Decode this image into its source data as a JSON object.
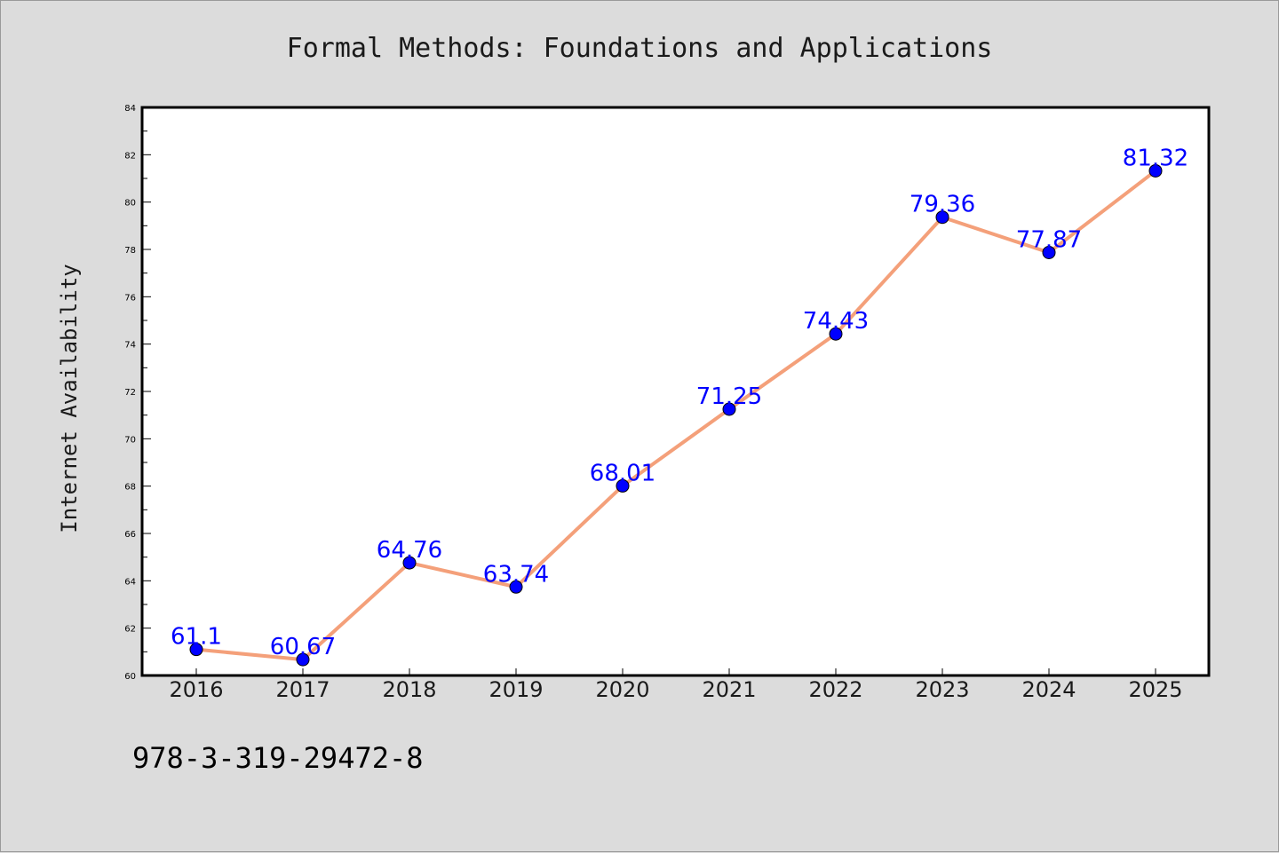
{
  "chart_data": {
    "type": "line",
    "title": "Formal Methods: Foundations and Applications",
    "xlabel": "",
    "ylabel": "Internet Availability",
    "categories": [
      "2016",
      "2017",
      "2018",
      "2019",
      "2020",
      "2021",
      "2022",
      "2023",
      "2024",
      "2025"
    ],
    "series": [
      {
        "values": [
          61.1,
          60.67,
          64.76,
          63.74,
          68.01,
          71.25,
          74.43,
          79.36,
          77.87,
          81.32
        ]
      }
    ],
    "data_labels": [
      "61.1",
      "60.67",
      "64.76",
      "63.74",
      "68.01",
      "71.25",
      "74.43",
      "79.36",
      "77.87",
      "81.32"
    ],
    "ylim": [
      60,
      84
    ],
    "yticks": [
      "60",
      "62",
      "64",
      "66",
      "68",
      "70",
      "72",
      "74",
      "76",
      "78",
      "80",
      "82",
      "84"
    ],
    "grid": false,
    "legend": "none",
    "colors": {
      "background": "#dcdcdc",
      "plot_background": "#ffffff",
      "line": "#f4a07a",
      "marker": "#0000ff",
      "data_label": "#0000ff"
    }
  },
  "footer": {
    "isbn": "978-3-319-29472-8"
  }
}
